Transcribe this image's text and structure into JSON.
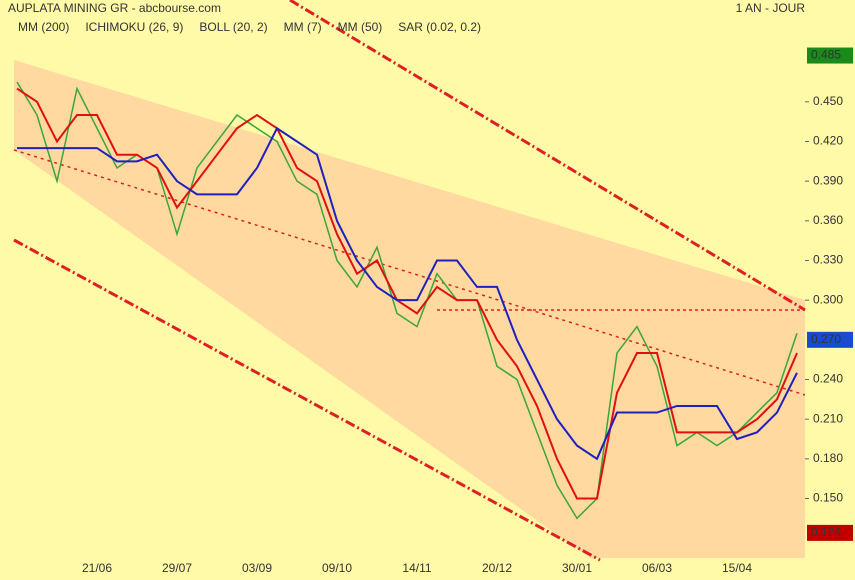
{
  "chart_data": {
    "type": "line",
    "title": "AUPLATA MINING GR - abcbourse.com",
    "period": "1 AN - JOUR",
    "indicators": [
      {
        "name": "MM (200)",
        "color": "#1a1aa8"
      },
      {
        "name": "ICHIMOKU (26, 9)",
        "color": "#1a1aa8"
      },
      {
        "name": "BOLL (20, 2)",
        "color": "#f0a040"
      },
      {
        "name": "MM (7)",
        "color": "#2a8a2a"
      },
      {
        "name": "MM (50)",
        "color": "#cc0000"
      },
      {
        "name": "SAR (0.02, 0.2)",
        "color": "#cc0000"
      }
    ],
    "categories": [
      null,
      null,
      null,
      null,
      "21/06",
      null,
      null,
      null,
      "29/07",
      null,
      null,
      null,
      "03/09",
      null,
      null,
      null,
      "09/10",
      null,
      null,
      null,
      "14/11",
      null,
      null,
      null,
      "20/12",
      null,
      null,
      null,
      "30/01",
      null,
      null,
      null,
      "06/03",
      null,
      null,
      null,
      "15/04",
      null,
      null,
      null
    ],
    "close": {
      "color": "#3aa53a",
      "values": [
        0.465,
        0.44,
        0.39,
        0.46,
        0.43,
        0.4,
        0.41,
        0.4,
        0.35,
        0.4,
        0.42,
        0.44,
        0.43,
        0.42,
        0.39,
        0.38,
        0.33,
        0.31,
        0.34,
        0.29,
        0.28,
        0.32,
        0.3,
        0.3,
        0.25,
        0.24,
        0.2,
        0.16,
        0.135,
        0.15,
        0.26,
        0.28,
        0.25,
        0.19,
        0.2,
        0.19,
        0.2,
        0.215,
        0.23,
        0.275
      ]
    },
    "series": [
      {
        "name": "MM (7)",
        "color": "#e01010",
        "values": [
          0.46,
          0.45,
          0.42,
          0.44,
          0.44,
          0.41,
          0.41,
          0.4,
          0.37,
          0.39,
          0.41,
          0.43,
          0.44,
          0.43,
          0.4,
          0.39,
          0.35,
          0.32,
          0.33,
          0.3,
          0.29,
          0.31,
          0.3,
          0.3,
          0.27,
          0.25,
          0.22,
          0.18,
          0.15,
          0.15,
          0.23,
          0.26,
          0.26,
          0.2,
          0.2,
          0.2,
          0.2,
          0.21,
          0.225,
          0.26
        ]
      },
      {
        "name": "MM (50)",
        "color": "#2020c0",
        "values": [
          0.415,
          0.415,
          0.415,
          0.415,
          0.415,
          0.405,
          0.405,
          0.41,
          0.39,
          0.38,
          0.38,
          0.38,
          0.4,
          0.43,
          0.42,
          0.41,
          0.36,
          0.33,
          0.31,
          0.3,
          0.3,
          0.33,
          0.33,
          0.31,
          0.31,
          0.27,
          0.24,
          0.21,
          0.19,
          0.18,
          0.215,
          0.215,
          0.215,
          0.22,
          0.22,
          0.22,
          0.195,
          0.2,
          0.215,
          0.245
        ]
      }
    ],
    "ylim": [
      0.105,
      0.527
    ],
    "yticks": [
      {
        "value": 0.45,
        "label": "0.450"
      },
      {
        "value": 0.42,
        "label": "0.420"
      },
      {
        "value": 0.39,
        "label": "0.390"
      },
      {
        "value": 0.36,
        "label": "0.360"
      },
      {
        "value": 0.33,
        "label": "0.330"
      },
      {
        "value": 0.3,
        "label": "0.300"
      },
      {
        "value": 0.24,
        "label": "0.240"
      },
      {
        "value": 0.21,
        "label": "0.210"
      },
      {
        "value": 0.18,
        "label": "0.180"
      },
      {
        "value": 0.15,
        "label": "0.150"
      }
    ],
    "price_markers": [
      {
        "value": 0.485,
        "color": "#1a8a1a"
      },
      {
        "value": 0.27,
        "label": "0.270",
        "color": "#1a4ad0"
      },
      {
        "value": 0.124,
        "color": "#c00000"
      }
    ]
  }
}
